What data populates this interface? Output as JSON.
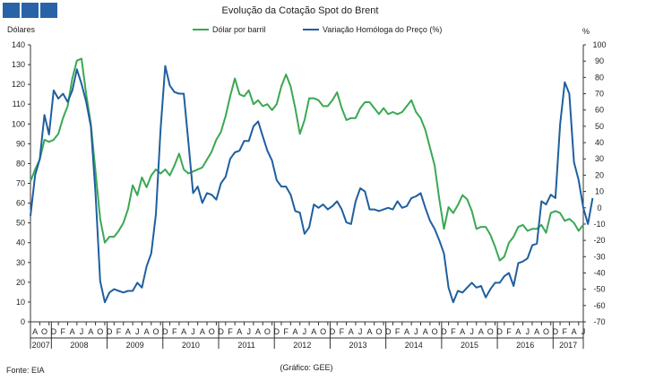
{
  "chart_data": {
    "type": "line",
    "title": "Evolução da Cotação Spot do Brent",
    "left_axis_label": "Dólares",
    "right_axis_label": "%",
    "left_ylim": [
      0,
      140
    ],
    "left_ticks": [
      0,
      10,
      20,
      30,
      40,
      50,
      60,
      70,
      80,
      90,
      100,
      110,
      120,
      130,
      140
    ],
    "right_ylim": [
      -70,
      100
    ],
    "right_ticks": [
      -70,
      -60,
      -50,
      -40,
      -30,
      -20,
      -10,
      0,
      10,
      20,
      30,
      40,
      50,
      60,
      70,
      80,
      90,
      100
    ],
    "x_start": "2007-08",
    "x_end": "2017-06",
    "month_tick_labels": [
      "A",
      "O",
      "D",
      "F",
      "A",
      "J",
      "A",
      "O",
      "D",
      "F",
      "A",
      "J",
      "A",
      "O",
      "D",
      "F",
      "A",
      "J",
      "A",
      "O",
      "D",
      "F",
      "A",
      "J",
      "A",
      "O",
      "D",
      "F",
      "A",
      "J",
      "A",
      "O",
      "D",
      "F",
      "A",
      "J",
      "A",
      "O",
      "D",
      "F",
      "A",
      "J",
      "A",
      "O",
      "D",
      "F",
      "A",
      "J",
      "A",
      "O",
      "D",
      "F",
      "A",
      "J",
      "A",
      "O",
      "D",
      "F",
      "A",
      "J"
    ],
    "year_labels": [
      "2007",
      "2008",
      "2009",
      "2010",
      "2011",
      "2012",
      "2013",
      "2014",
      "2015",
      "2016",
      "2017"
    ],
    "series": [
      {
        "name": "Dólar por barril",
        "axis": "left",
        "color": "#3aa853",
        "values": [
          71,
          77,
          82,
          92,
          91,
          92,
          95,
          103,
          109,
          123,
          132,
          133,
          115,
          100,
          76,
          52,
          40,
          43,
          43,
          46,
          50,
          57,
          69,
          64,
          73,
          68,
          74,
          77,
          75,
          77,
          74,
          79,
          85,
          77,
          75,
          76,
          77,
          78,
          82,
          86,
          92,
          96,
          104,
          114,
          123,
          115,
          114,
          117,
          110,
          112,
          109,
          110,
          107,
          110,
          119,
          125,
          119,
          108,
          95,
          102,
          113,
          113,
          112,
          109,
          109,
          112,
          116,
          108,
          102,
          103,
          103,
          108,
          111,
          111,
          108,
          105,
          108,
          105,
          106,
          105,
          106,
          109,
          112,
          106,
          103,
          97,
          88,
          79,
          62,
          47,
          58,
          55,
          59,
          64,
          62,
          56,
          47,
          48,
          48,
          44,
          38,
          31,
          33,
          40,
          43,
          48,
          49,
          46,
          47,
          47,
          49,
          45,
          55,
          56,
          55,
          51,
          52,
          50,
          46,
          49
        ]
      },
      {
        "name": "Variação Homóloga do Preço (%)",
        "axis": "right",
        "color": "#1f5f9f",
        "values": [
          -5,
          20,
          30,
          57,
          45,
          72,
          67,
          70,
          65,
          72,
          85,
          76,
          65,
          50,
          9,
          -45,
          -58,
          -52,
          -50,
          -51,
          -52,
          -51,
          -51,
          -46,
          -49,
          -36,
          -28,
          -4,
          48,
          87,
          75,
          71,
          70,
          70,
          40,
          9,
          13,
          3,
          9,
          8,
          5,
          15,
          19,
          30,
          34,
          35,
          41,
          41,
          50,
          53,
          44,
          35,
          29,
          17,
          13,
          13,
          8,
          -2,
          -3,
          -16,
          -12,
          2,
          0,
          2,
          -1,
          1,
          4,
          -1,
          -9,
          -10,
          4,
          12,
          10,
          -1,
          -1,
          -2,
          -1,
          0,
          -1,
          4,
          0,
          1,
          6,
          7,
          9,
          0,
          -8,
          -13,
          -20,
          -28,
          -49,
          -58,
          -51,
          -52,
          -49,
          -46,
          -49,
          -48,
          -55,
          -50,
          -46,
          -46,
          -42,
          -40,
          -48,
          -34,
          -33,
          -31,
          -23,
          -22,
          4,
          2,
          8,
          6,
          51,
          77,
          70,
          28,
          17,
          0,
          -10,
          6
        ]
      }
    ]
  },
  "footer": {
    "source": "Fonte: EIA",
    "credit": "(Gráfico: GEE)"
  }
}
